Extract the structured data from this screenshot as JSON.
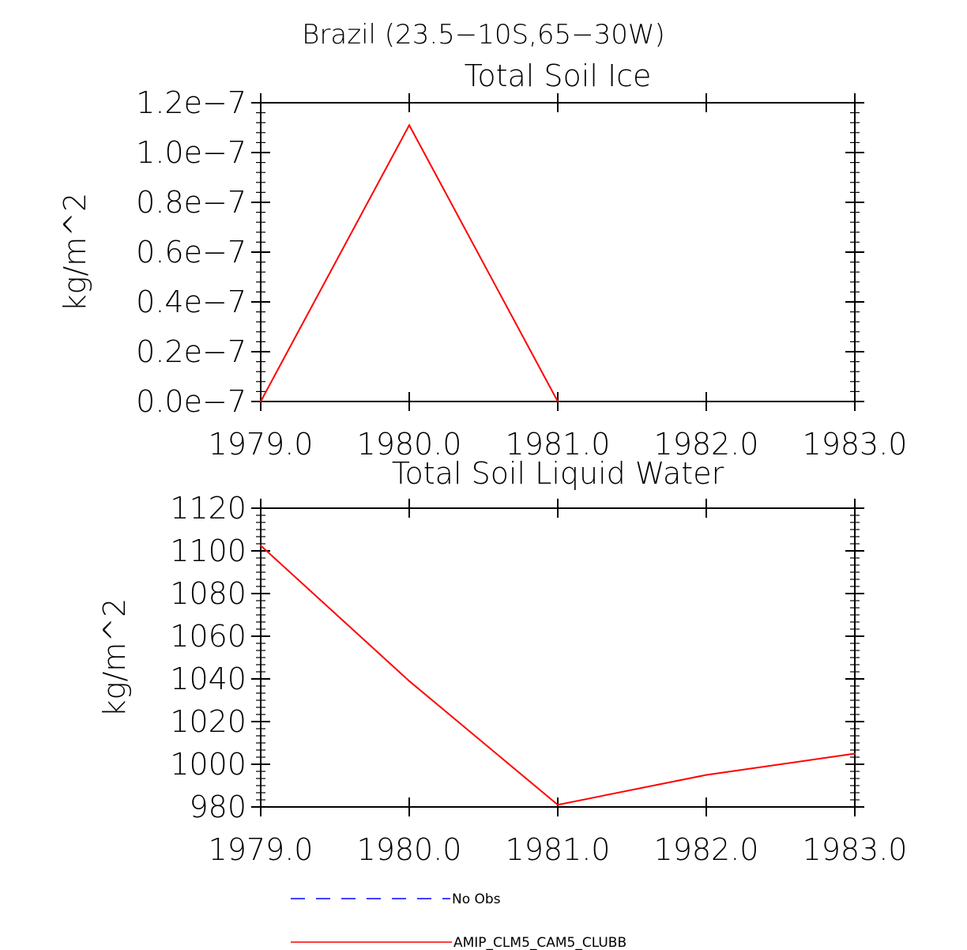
{
  "figure": {
    "title": "Brazil (23.5−10S,65−30W)"
  },
  "chart_data": [
    {
      "type": "line",
      "title": "Total Soil Ice",
      "ylabel": "kg/m^2",
      "xlabel": "",
      "xlim": [
        1979,
        1983
      ],
      "ylim": [
        0,
        1.2e-07
      ],
      "x_ticks": [
        1979,
        1980,
        1981,
        1982,
        1983
      ],
      "x_tick_labels": [
        "1979.0",
        "1980.0",
        "1981.0",
        "1982.0",
        "1983.0"
      ],
      "y_ticks": [
        0,
        2e-08,
        4e-08,
        6e-08,
        8e-08,
        1e-07,
        1.2e-07
      ],
      "y_tick_labels": [
        "0.0e−7",
        "0.2e−7",
        "0.4e−7",
        "0.6e−7",
        "0.8e−7",
        "1.0e−7",
        "1.2e−7"
      ],
      "series": [
        {
          "name": "AMIP_CLM5_CAM5_CLUBB",
          "color": "#ff0000",
          "x": [
            1979,
            1980,
            1981
          ],
          "y": [
            0,
            1.11e-07,
            0
          ]
        }
      ]
    },
    {
      "type": "line",
      "title": "Total Soil Liquid Water",
      "ylabel": "kg/m^2",
      "xlabel": "",
      "xlim": [
        1979,
        1983
      ],
      "ylim": [
        980,
        1120
      ],
      "x_ticks": [
        1979,
        1980,
        1981,
        1982,
        1983
      ],
      "x_tick_labels": [
        "1979.0",
        "1980.0",
        "1981.0",
        "1982.0",
        "1983.0"
      ],
      "y_ticks": [
        980,
        1000,
        1020,
        1040,
        1060,
        1080,
        1100,
        1120
      ],
      "y_tick_labels": [
        "980",
        "1000",
        "1020",
        "1040",
        "1060",
        "1080",
        "1100",
        "1120"
      ],
      "series": [
        {
          "name": "AMIP_CLM5_CAM5_CLUBB",
          "color": "#ff0000",
          "x": [
            1979,
            1980,
            1981,
            1982,
            1983
          ],
          "y": [
            1102.5,
            1039,
            981,
            995,
            1005
          ]
        }
      ]
    }
  ],
  "legend": {
    "items": [
      {
        "label": "No Obs",
        "color": "#0000ff",
        "style": "dashed"
      },
      {
        "label": "AMIP_CLM5_CAM5_CLUBB",
        "color": "#ff0000",
        "style": "solid"
      }
    ]
  }
}
